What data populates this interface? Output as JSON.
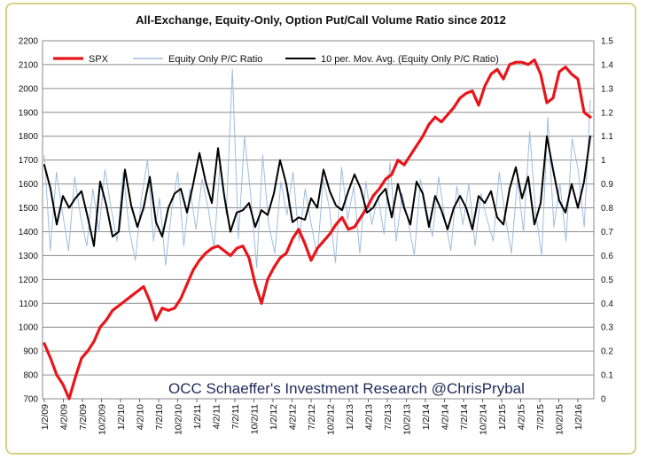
{
  "chart_data": {
    "type": "line",
    "title": "All-Exchange, Equity-Only, Option Put/Call Volume Ratio since 2012",
    "annotation": "OCC  Schaeffer's Investment Research  @ChrisPrybal",
    "grid": true,
    "legend_position": "top",
    "y_left": {
      "ylim": [
        700,
        2200
      ],
      "ticks": [
        "700",
        "800",
        "900",
        "1000",
        "1100",
        "1200",
        "1300",
        "1400",
        "1500",
        "1600",
        "1700",
        "1800",
        "1900",
        "2000",
        "2100",
        "2200"
      ]
    },
    "y_right": {
      "ylim": [
        0,
        1.5
      ],
      "ticks": [
        "0",
        "0.1",
        "0.2",
        "0.3",
        "0.4",
        "0.5",
        "0.6",
        "0.7",
        "0.8",
        "0.9",
        "1",
        "1.1",
        "1.2",
        "1.3",
        "1.4",
        "1.5"
      ]
    },
    "x_ticks": [
      "1/2/09",
      "4/2/09",
      "7/2/09",
      "10/2/09",
      "1/2/10",
      "4/2/10",
      "7/2/10",
      "10/2/10",
      "1/2/11",
      "4/2/11",
      "7/2/11",
      "10/2/11",
      "1/2/12",
      "4/2/12",
      "7/2/12",
      "10/2/12",
      "1/2/13",
      "4/2/13",
      "7/2/13",
      "10/2/13",
      "1/2/14",
      "4/2/14",
      "7/2/14",
      "10/2/14",
      "1/2/15",
      "4/2/15",
      "7/2/15",
      "10/2/15",
      "1/2/16"
    ],
    "series": [
      {
        "name": "SPX",
        "axis": "left",
        "color": "#e8161a",
        "values": [
          931,
          870,
          800,
          760,
          700,
          790,
          870,
          900,
          940,
          1000,
          1030,
          1070,
          1090,
          1110,
          1130,
          1150,
          1170,
          1110,
          1030,
          1080,
          1070,
          1080,
          1120,
          1180,
          1240,
          1280,
          1310,
          1330,
          1340,
          1320,
          1300,
          1330,
          1340,
          1290,
          1180,
          1100,
          1200,
          1250,
          1290,
          1310,
          1370,
          1410,
          1350,
          1280,
          1330,
          1360,
          1390,
          1430,
          1460,
          1410,
          1420,
          1460,
          1500,
          1550,
          1580,
          1620,
          1640,
          1700,
          1680,
          1720,
          1760,
          1800,
          1850,
          1880,
          1860,
          1890,
          1920,
          1960,
          1980,
          1990,
          1930,
          2010,
          2060,
          2080,
          2040,
          2100,
          2110,
          2110,
          2100,
          2120,
          2060,
          1940,
          1960,
          2070,
          2090,
          2060,
          2040,
          1900,
          1880
        ]
      },
      {
        "name": "Equity Only P/C Ratio",
        "axis": "right",
        "color": "#9fbde0",
        "values": [
          1.02,
          0.62,
          0.95,
          0.78,
          0.62,
          0.93,
          0.76,
          0.64,
          0.88,
          0.7,
          0.96,
          0.8,
          0.66,
          0.95,
          0.71,
          0.58,
          0.84,
          1.0,
          0.66,
          0.84,
          0.56,
          0.79,
          0.95,
          0.64,
          0.88,
          0.71,
          0.92,
          0.8,
          0.63,
          1.0,
          0.77,
          1.38,
          0.67,
          1.1,
          0.86,
          0.55,
          1.02,
          0.73,
          0.61,
          0.91,
          0.77,
          0.95,
          0.66,
          0.88,
          0.73,
          0.6,
          0.92,
          0.8,
          0.57,
          0.97,
          0.75,
          0.89,
          0.61,
          0.91,
          0.73,
          0.85,
          0.69,
          0.99,
          0.66,
          0.86,
          0.74,
          0.6,
          0.92,
          0.79,
          0.68,
          0.93,
          0.76,
          0.62,
          0.89,
          0.73,
          0.9,
          0.64,
          0.86,
          0.75,
          0.66,
          0.95,
          0.76,
          0.61,
          0.92,
          0.7,
          1.12,
          0.78,
          0.6,
          1.18,
          0.72,
          0.9,
          0.66,
          1.09,
          0.96,
          0.72,
          1.25
        ]
      },
      {
        "name": "10 per. Mov. Avg. (Equity Only P/C Ratio)",
        "axis": "right",
        "color": "#000000",
        "values": [
          0.98,
          0.88,
          0.73,
          0.85,
          0.8,
          0.84,
          0.87,
          0.76,
          0.64,
          0.91,
          0.81,
          0.68,
          0.7,
          0.96,
          0.81,
          0.72,
          0.8,
          0.93,
          0.74,
          0.68,
          0.8,
          0.86,
          0.88,
          0.78,
          0.9,
          1.03,
          0.91,
          0.82,
          1.05,
          0.85,
          0.7,
          0.78,
          0.79,
          0.82,
          0.72,
          0.79,
          0.77,
          0.86,
          1.0,
          0.9,
          0.74,
          0.76,
          0.75,
          0.84,
          0.8,
          0.96,
          0.87,
          0.81,
          0.79,
          0.87,
          0.94,
          0.88,
          0.78,
          0.8,
          0.85,
          0.88,
          0.76,
          0.9,
          0.8,
          0.73,
          0.91,
          0.86,
          0.72,
          0.85,
          0.79,
          0.71,
          0.8,
          0.85,
          0.8,
          0.71,
          0.85,
          0.82,
          0.87,
          0.76,
          0.73,
          0.88,
          0.97,
          0.84,
          0.93,
          0.73,
          0.82,
          1.1,
          0.96,
          0.83,
          0.78,
          0.9,
          0.8,
          0.91,
          1.1
        ]
      }
    ]
  }
}
